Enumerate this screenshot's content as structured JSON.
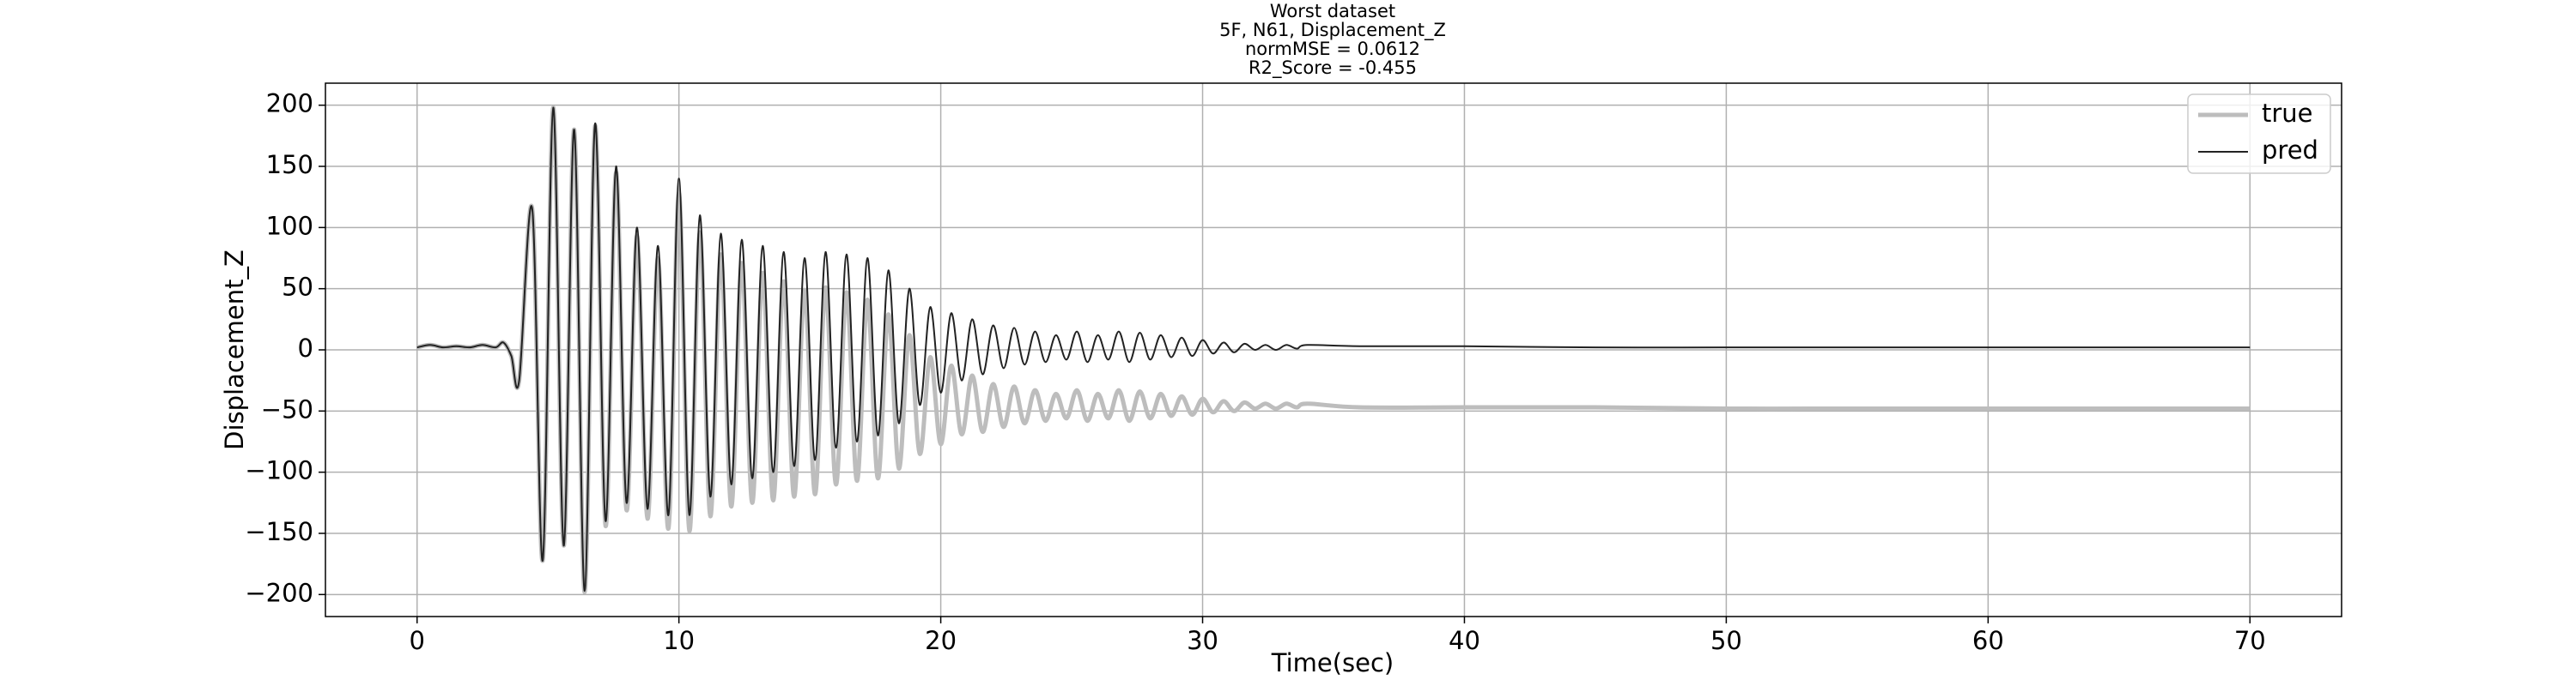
{
  "chart_data": {
    "type": "line",
    "title_lines": [
      "Worst dataset",
      "5F, N61, Displacement_Z",
      "normMSE = 0.0612",
      "R2_Score = -0.455"
    ],
    "xlabel": "Time(sec)",
    "ylabel": "Displacement_Z",
    "x": [
      0,
      0.5,
      1,
      1.5,
      2,
      2.5,
      3,
      3.3,
      3.6,
      3.9,
      4.4,
      4.8,
      5.2,
      5.6,
      6.0,
      6.4,
      6.8,
      7.2,
      7.6,
      8.0,
      8.4,
      8.8,
      9.2,
      9.6,
      10.0,
      10.4,
      10.8,
      11.2,
      11.6,
      12.0,
      12.4,
      12.8,
      13.2,
      13.6,
      14.0,
      14.4,
      14.8,
      15.2,
      15.6,
      16.0,
      16.4,
      16.8,
      17.2,
      17.6,
      18.0,
      18.4,
      18.8,
      19.2,
      19.6,
      20.0,
      20.4,
      20.8,
      21.2,
      21.6,
      22.0,
      22.4,
      22.8,
      23.2,
      23.6,
      24.0,
      24.4,
      24.8,
      25.2,
      25.6,
      26.0,
      26.4,
      26.8,
      27.2,
      27.6,
      28.0,
      28.4,
      28.8,
      29.2,
      29.6,
      30.0,
      30.4,
      30.8,
      31.2,
      31.6,
      32.0,
      32.4,
      32.8,
      33.2,
      33.6,
      34.0,
      36,
      40,
      45,
      50,
      55,
      60,
      65,
      70
    ],
    "series": [
      {
        "name": "true",
        "color": "#bdbdbd",
        "values": [
          2,
          4,
          2,
          3,
          2,
          4,
          2,
          6,
          -5,
          -25,
          115,
          -172,
          198,
          -160,
          180,
          -198,
          183,
          -144,
          145,
          -131,
          93,
          -138,
          75,
          -146,
          128,
          -148,
          96,
          -136,
          78,
          -128,
          71,
          -125,
          63,
          -123,
          56,
          -120,
          49,
          -118,
          51,
          -110,
          47,
          -107,
          41,
          -105,
          29,
          -97,
          12,
          -85,
          -6,
          -77,
          -13,
          -69,
          -21,
          -67,
          -28,
          -63,
          -30,
          -60,
          -33,
          -58,
          -36,
          -56,
          -33,
          -58,
          -36,
          -56,
          -33,
          -58,
          -34,
          -56,
          -36,
          -54,
          -38,
          -53,
          -40,
          -51,
          -42,
          -50,
          -43,
          -48,
          -44,
          -48,
          -44,
          -47,
          -44,
          -47,
          -47,
          -47,
          -48,
          -48,
          -48,
          -48,
          -48
        ]
      },
      {
        "name": "pred",
        "color": "#222222",
        "values": [
          2,
          4,
          2,
          3,
          2,
          4,
          2,
          6,
          -5,
          -25,
          115,
          -172,
          198,
          -160,
          180,
          -197,
          185,
          -140,
          150,
          -125,
          100,
          -130,
          85,
          -135,
          140,
          -135,
          110,
          -120,
          95,
          -110,
          90,
          -105,
          85,
          -100,
          80,
          -95,
          75,
          -90,
          80,
          -80,
          78,
          -75,
          75,
          -70,
          65,
          -60,
          50,
          -45,
          35,
          -35,
          30,
          -25,
          25,
          -20,
          20,
          -15,
          18,
          -12,
          15,
          -10,
          12,
          -8,
          15,
          -10,
          12,
          -8,
          15,
          -10,
          14,
          -8,
          12,
          -6,
          10,
          -5,
          8,
          -3,
          6,
          -2,
          5,
          0,
          4,
          0,
          4,
          1,
          4,
          3,
          3,
          2,
          2,
          2,
          2,
          2,
          2
        ]
      }
    ],
    "xlim": [
      -3.5,
      73.5
    ],
    "ylim": [
      -218,
      218
    ],
    "xticks": [
      0,
      10,
      20,
      30,
      40,
      50,
      60,
      70
    ],
    "yticks": [
      {
        "value": -200,
        "label": "−200"
      },
      {
        "value": -150,
        "label": "−150"
      },
      {
        "value": -100,
        "label": "−100"
      },
      {
        "value": -50,
        "label": "−50"
      },
      0,
      50,
      100,
      150,
      200
    ],
    "grid": true,
    "legend": "upper right"
  }
}
